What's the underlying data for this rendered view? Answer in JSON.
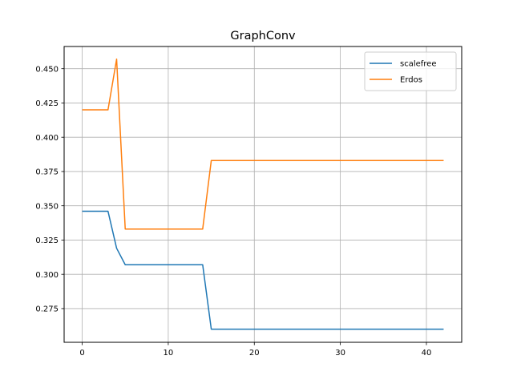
{
  "chart_data": {
    "type": "line",
    "title": "GraphConv",
    "xlabel": "",
    "ylabel": "",
    "xlim": [
      -2.1,
      44.1
    ],
    "ylim": [
      0.2504,
      0.4662
    ],
    "xticks": [
      0,
      10,
      20,
      30,
      40
    ],
    "xtick_labels": [
      "0",
      "10",
      "20",
      "30",
      "40"
    ],
    "yticks": [
      0.275,
      0.3,
      0.325,
      0.35,
      0.375,
      0.4,
      0.425,
      0.45
    ],
    "ytick_labels": [
      "0.275",
      "0.300",
      "0.325",
      "0.350",
      "0.375",
      "0.400",
      "0.425",
      "0.450"
    ],
    "grid": true,
    "legend_position": "top-right",
    "series": [
      {
        "name": "scalefree",
        "color": "#1f77b4",
        "x": [
          0,
          1,
          2,
          3,
          4,
          5,
          6,
          7,
          8,
          9,
          10,
          11,
          12,
          13,
          14,
          15,
          16,
          17,
          18,
          19,
          20,
          21,
          22,
          23,
          24,
          25,
          26,
          27,
          28,
          29,
          30,
          31,
          32,
          33,
          34,
          35,
          36,
          37,
          38,
          39,
          40,
          41,
          42
        ],
        "y": [
          0.346,
          0.346,
          0.346,
          0.346,
          0.319,
          0.307,
          0.307,
          0.307,
          0.307,
          0.307,
          0.307,
          0.307,
          0.307,
          0.307,
          0.307,
          0.26,
          0.26,
          0.26,
          0.26,
          0.26,
          0.26,
          0.26,
          0.26,
          0.26,
          0.26,
          0.26,
          0.26,
          0.26,
          0.26,
          0.26,
          0.26,
          0.26,
          0.26,
          0.26,
          0.26,
          0.26,
          0.26,
          0.26,
          0.26,
          0.26,
          0.26,
          0.26,
          0.26
        ]
      },
      {
        "name": "Erdos",
        "color": "#ff7f0e",
        "x": [
          0,
          1,
          2,
          3,
          4,
          5,
          6,
          7,
          8,
          9,
          10,
          11,
          12,
          13,
          14,
          15,
          16,
          17,
          18,
          19,
          20,
          21,
          22,
          23,
          24,
          25,
          26,
          27,
          28,
          29,
          30,
          31,
          32,
          33,
          34,
          35,
          36,
          37,
          38,
          39,
          40,
          41,
          42
        ],
        "y": [
          0.42,
          0.42,
          0.42,
          0.42,
          0.457,
          0.333,
          0.333,
          0.333,
          0.333,
          0.333,
          0.333,
          0.333,
          0.333,
          0.333,
          0.333,
          0.383,
          0.383,
          0.383,
          0.383,
          0.383,
          0.383,
          0.383,
          0.383,
          0.383,
          0.383,
          0.383,
          0.383,
          0.383,
          0.383,
          0.383,
          0.383,
          0.383,
          0.383,
          0.383,
          0.383,
          0.383,
          0.383,
          0.383,
          0.383,
          0.383,
          0.383,
          0.383,
          0.383
        ]
      }
    ]
  }
}
